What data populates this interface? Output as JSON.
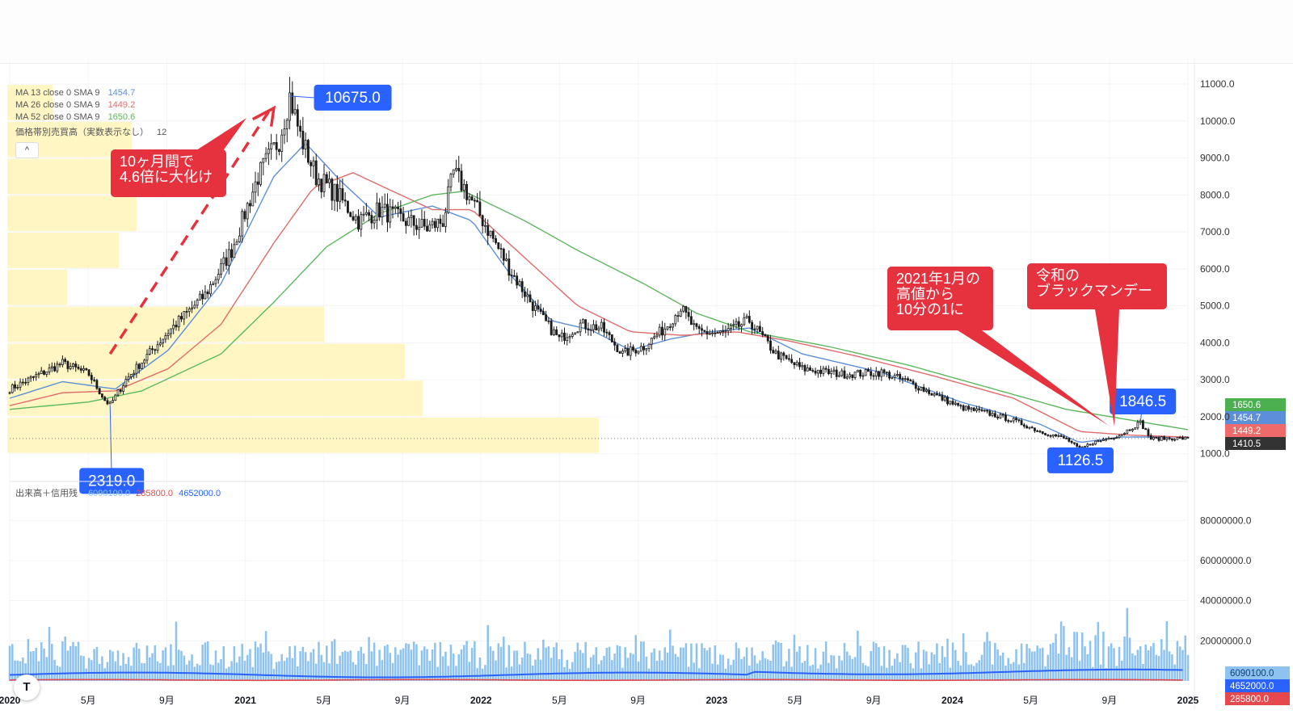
{
  "chart_data": {
    "type": "candlestick",
    "price_axis": {
      "ticks": [
        1000,
        2000,
        3000,
        4000,
        5000,
        6000,
        7000,
        8000,
        9000,
        10000,
        11000
      ],
      "tick_labels": [
        "1000.0",
        "2000.0",
        "3000.0",
        "4000.0",
        "5000.0",
        "6000.0",
        "7000.0",
        "8000.0",
        "9000.0",
        "10000.0",
        "11000.0"
      ],
      "ylim": [
        600,
        11700
      ]
    },
    "volume_axis": {
      "ticks": [
        20000000,
        40000000,
        60000000,
        80000000
      ],
      "tick_labels": [
        "20000000.0",
        "40000000.0",
        "60000000.0",
        "80000000.0"
      ],
      "ylim": [
        0,
        93000000
      ]
    },
    "time_axis": {
      "labels": [
        "2020",
        "5月",
        "9月",
        "2021",
        "5月",
        "9月",
        "2022",
        "5月",
        "9月",
        "2023",
        "5月",
        "9月",
        "2024",
        "5月",
        "9月",
        "2025"
      ],
      "bold": [
        true,
        false,
        false,
        true,
        false,
        false,
        true,
        false,
        false,
        true,
        false,
        false,
        true,
        false,
        false,
        true
      ]
    },
    "legend": [
      {
        "label": "MA 13 close 0 SMA 9",
        "value": "1454.7",
        "color": "#5b8fd9"
      },
      {
        "label": "MA 26 close 0 SMA 9",
        "value": "1449.2",
        "color": "#e06b6b"
      },
      {
        "label": "MA 52 close 0 SMA 9",
        "value": "1650.6",
        "color": "#5cb85c"
      },
      {
        "label": "価格帯別売買高（実数表示なし）",
        "value": "12",
        "color": "#555555"
      }
    ],
    "price_keypoints": [
      [
        0,
        2750
      ],
      [
        10,
        3100
      ],
      [
        20,
        3450
      ],
      [
        30,
        3150
      ],
      [
        36,
        2450
      ],
      [
        38,
        2319
      ],
      [
        44,
        3000
      ],
      [
        60,
        4300
      ],
      [
        74,
        5300
      ],
      [
        84,
        6500
      ],
      [
        94,
        8500
      ],
      [
        102,
        9500
      ],
      [
        106,
        10675
      ],
      [
        110,
        9600
      ],
      [
        116,
        8500
      ],
      [
        124,
        8000
      ],
      [
        132,
        7300
      ],
      [
        140,
        7600
      ],
      [
        150,
        7300
      ],
      [
        158,
        7100
      ],
      [
        164,
        7300
      ],
      [
        168,
        8600
      ],
      [
        172,
        8200
      ],
      [
        180,
        7200
      ],
      [
        190,
        5900
      ],
      [
        200,
        4800
      ],
      [
        208,
        4100
      ],
      [
        216,
        4500
      ],
      [
        224,
        4400
      ],
      [
        232,
        3700
      ],
      [
        240,
        3900
      ],
      [
        248,
        4400
      ],
      [
        254,
        4950
      ],
      [
        260,
        4300
      ],
      [
        270,
        4250
      ],
      [
        280,
        4600
      ],
      [
        290,
        3700
      ],
      [
        300,
        3300
      ],
      [
        315,
        3150
      ],
      [
        330,
        3200
      ],
      [
        340,
        2950
      ],
      [
        350,
        2600
      ],
      [
        360,
        2250
      ],
      [
        370,
        2100
      ],
      [
        380,
        1900
      ],
      [
        390,
        1600
      ],
      [
        400,
        1400
      ],
      [
        405,
        1126.5
      ],
      [
        410,
        1300
      ],
      [
        420,
        1500
      ],
      [
        428,
        1846.5
      ],
      [
        432,
        1400
      ],
      [
        440,
        1420
      ],
      [
        446,
        1410.5
      ]
    ],
    "ma13_keypoints": [
      [
        0,
        2500
      ],
      [
        20,
        2950
      ],
      [
        40,
        2750
      ],
      [
        60,
        3800
      ],
      [
        80,
        5600
      ],
      [
        100,
        8500
      ],
      [
        112,
        9400
      ],
      [
        125,
        8400
      ],
      [
        140,
        7400
      ],
      [
        160,
        7700
      ],
      [
        175,
        7300
      ],
      [
        190,
        5800
      ],
      [
        205,
        4600
      ],
      [
        220,
        4350
      ],
      [
        235,
        3800
      ],
      [
        250,
        4100
      ],
      [
        265,
        4300
      ],
      [
        280,
        4400
      ],
      [
        300,
        3700
      ],
      [
        330,
        3200
      ],
      [
        360,
        2400
      ],
      [
        390,
        1800
      ],
      [
        405,
        1300
      ],
      [
        420,
        1450
      ],
      [
        446,
        1454.7
      ]
    ],
    "ma26_keypoints": [
      [
        0,
        2300
      ],
      [
        20,
        2650
      ],
      [
        40,
        2700
      ],
      [
        60,
        3300
      ],
      [
        80,
        4500
      ],
      [
        100,
        6700
      ],
      [
        115,
        8200
      ],
      [
        130,
        8600
      ],
      [
        145,
        8100
      ],
      [
        160,
        7600
      ],
      [
        175,
        7600
      ],
      [
        195,
        6300
      ],
      [
        215,
        5000
      ],
      [
        235,
        4300
      ],
      [
        255,
        4200
      ],
      [
        275,
        4300
      ],
      [
        295,
        4050
      ],
      [
        320,
        3650
      ],
      [
        350,
        3100
      ],
      [
        380,
        2500
      ],
      [
        405,
        1600
      ],
      [
        425,
        1500
      ],
      [
        446,
        1449.2
      ]
    ],
    "ma52_keypoints": [
      [
        0,
        2200
      ],
      [
        30,
        2400
      ],
      [
        50,
        2700
      ],
      [
        80,
        3700
      ],
      [
        100,
        5100
      ],
      [
        120,
        6600
      ],
      [
        140,
        7500
      ],
      [
        160,
        8000
      ],
      [
        172,
        8100
      ],
      [
        195,
        7300
      ],
      [
        215,
        6500
      ],
      [
        240,
        5600
      ],
      [
        260,
        4800
      ],
      [
        280,
        4300
      ],
      [
        310,
        3900
      ],
      [
        340,
        3400
      ],
      [
        370,
        2800
      ],
      [
        400,
        2200
      ],
      [
        446,
        1650.6
      ]
    ],
    "volume_profile": [
      {
        "price_bottom": 10000,
        "price_top": 11000,
        "width": 56
      },
      {
        "price_bottom": 9000,
        "price_top": 10000,
        "width": 154
      },
      {
        "price_bottom": 8000,
        "price_top": 9000,
        "width": 240
      },
      {
        "price_bottom": 7000,
        "price_top": 8000,
        "width": 160
      },
      {
        "price_bottom": 6000,
        "price_top": 7000,
        "width": 138
      },
      {
        "price_bottom": 5000,
        "price_top": 6000,
        "width": 74
      },
      {
        "price_bottom": 4000,
        "price_top": 5000,
        "width": 392
      },
      {
        "price_bottom": 3000,
        "price_top": 4000,
        "width": 492
      },
      {
        "price_bottom": 2000,
        "price_top": 3000,
        "width": 514
      },
      {
        "price_bottom": 1000,
        "price_top": 2000,
        "width": 732
      }
    ],
    "volume_panel": {
      "title": "出来高＋信用残",
      "values": [
        {
          "text": "6090100.0",
          "color": "#8ec3ef"
        },
        {
          "text": "285800.0",
          "color": "#e5484d"
        },
        {
          "text": "4652000.0",
          "color": "#2962ff"
        }
      ]
    },
    "price_labels": [
      {
        "text": "1650.6",
        "value": 1650.6,
        "color": "#4caf50"
      },
      {
        "text": "1454.7",
        "value": 1454.7,
        "color": "#5b8fd9"
      },
      {
        "text": "1449.2",
        "value": 1449.2,
        "color": "#ef6b6b"
      },
      {
        "text": "1410.5",
        "value": 1410.5,
        "color": "#333333"
      }
    ],
    "volume_labels": [
      {
        "text": "6090100.0",
        "value": 6090100,
        "color": "#8ec3ef",
        "text_color": "#0d3c7a"
      },
      {
        "text": "4652000.0",
        "value": 4652000,
        "color": "#2962ff",
        "text_color": "#ffffff"
      },
      {
        "text": "285800.0",
        "value": 285800,
        "color": "#e5484d",
        "text_color": "#ffffff"
      }
    ],
    "point_callouts": [
      {
        "text": "10675.0",
        "week": 106,
        "value": 10675
      },
      {
        "text": "2319.0",
        "week": 38,
        "value": 2319
      },
      {
        "text": "1846.5",
        "week": 428,
        "value": 1846.5
      },
      {
        "text": "1126.5",
        "week": 405,
        "value": 1126.5
      }
    ],
    "annotations": [
      {
        "lines": [
          "10ヶ月間で",
          "4.6倍に大化け"
        ]
      },
      {
        "lines": [
          "2021年1月の",
          "高値から",
          "10分の1に"
        ]
      },
      {
        "lines": [
          "令和の",
          "ブラックマンデー"
        ]
      }
    ]
  }
}
